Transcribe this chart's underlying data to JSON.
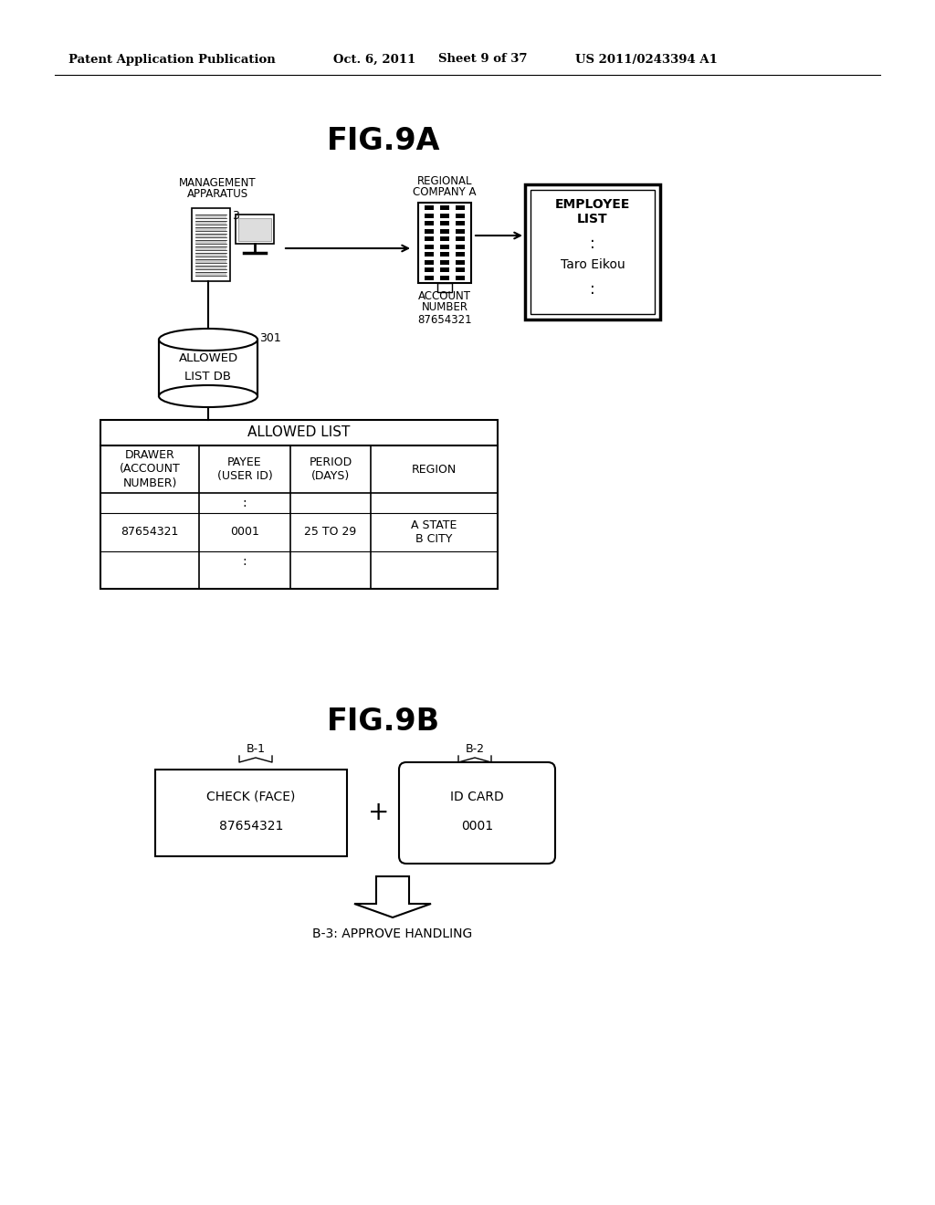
{
  "background_color": "#ffffff",
  "header_text": "Patent Application Publication",
  "header_date": "Oct. 6, 2011",
  "header_sheet": "Sheet 9 of 37",
  "header_patent": "US 2011/0243394 A1",
  "fig9a_title": "FIG.9A",
  "fig9b_title": "FIG.9B",
  "mgmt_label1": "MANAGEMENT",
  "mgmt_label2": "APPARATUS",
  "mgmt_num": "3",
  "regional_label1": "REGIONAL",
  "regional_label2": "COMPANY A",
  "account_label1": "ACCOUNT",
  "account_label2": "NUMBER",
  "account_num": "87654321",
  "employee_title1": "EMPLOYEE",
  "employee_title2": "LIST",
  "employee_name": "Taro Eikou",
  "db_label1": "ALLOWED",
  "db_label2": "LIST DB",
  "db_num": "301",
  "table_title": "ALLOWED LIST",
  "col1_header": "DRAWER\n(ACCOUNT\nNUMBER)",
  "col2_header": "PAYEE\n(USER ID)",
  "col3_header": "PERIOD\n(DAYS)",
  "col4_header": "REGION",
  "row_data": [
    "87654321",
    "0001",
    "25 TO 29",
    "A STATE\nB CITY"
  ],
  "b1_label": "B-1",
  "b2_label": "B-2",
  "b3_label": "B-3: APPROVE HANDLING",
  "b1_line1": "CHECK (FACE)",
  "b1_line2": "87654321",
  "b2_line1": "ID CARD",
  "b2_line2": "0001",
  "plus_sign": "+"
}
